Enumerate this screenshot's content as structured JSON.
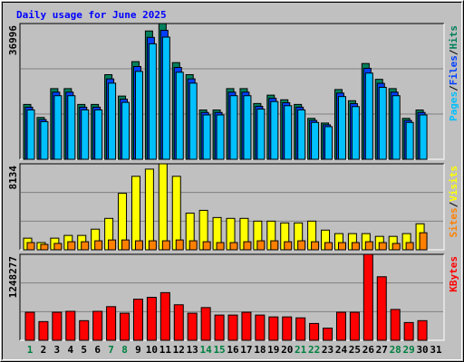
{
  "title": "Daily usage for June 2025",
  "legend_separator": "/",
  "chart_data": [
    {
      "type": "bar",
      "ylim": [
        0,
        36996
      ],
      "yticks": [
        36996
      ],
      "grid_divisions": 3,
      "series": [
        {
          "name": "Hits",
          "color": "#00805c",
          "values": [
            14950,
            11400,
            19260,
            19260,
            14950,
            14950,
            23060,
            17230,
            26610,
            34970,
            36996,
            26350,
            23060,
            13430,
            13430,
            19260,
            19260,
            15200,
            17480,
            16220,
            14950,
            11150,
            9880,
            19000,
            15960,
            26100,
            21790,
            19260,
            11150,
            13430,
            null
          ]
        },
        {
          "name": "Files",
          "color": "#0040ff",
          "values": [
            14200,
            10830,
            18300,
            18300,
            14200,
            14200,
            21910,
            16370,
            25280,
            33220,
            35150,
            25030,
            21910,
            12760,
            12760,
            18300,
            18300,
            14440,
            16610,
            15410,
            14200,
            10590,
            9390,
            18050,
            15160,
            24800,
            20700,
            18300,
            10590,
            12760,
            null
          ]
        },
        {
          "name": "Pages",
          "color": "#00c0ff",
          "values": [
            13460,
            10260,
            17330,
            17330,
            13460,
            13460,
            20750,
            15510,
            23950,
            31470,
            33300,
            23720,
            20750,
            12090,
            12090,
            17330,
            17330,
            13680,
            15730,
            14600,
            13460,
            10040,
            8890,
            17100,
            14360,
            23490,
            19610,
            17330,
            10040,
            12090,
            null
          ]
        }
      ]
    },
    {
      "type": "bar",
      "ylim": [
        0,
        8134
      ],
      "yticks": [
        8134
      ],
      "grid_divisions": 3,
      "series": [
        {
          "name": "Visits",
          "color": "#ffff00",
          "values": [
            1100,
            680,
            1100,
            1360,
            1360,
            1950,
            2970,
            5340,
            6950,
            7630,
            8134,
            6950,
            3470,
            3730,
            3050,
            2970,
            2970,
            2710,
            2710,
            2540,
            2540,
            2710,
            1860,
            1530,
            1530,
            1530,
            1270,
            1270,
            1530,
            2460,
            null
          ]
        },
        {
          "name": "Sites",
          "color": "#ff8000",
          "values": [
            680,
            510,
            600,
            760,
            760,
            850,
            930,
            930,
            850,
            850,
            850,
            930,
            850,
            760,
            680,
            680,
            760,
            850,
            850,
            760,
            850,
            760,
            680,
            680,
            680,
            760,
            680,
            600,
            680,
            1610,
            null
          ]
        }
      ]
    },
    {
      "type": "bar",
      "ylim": [
        0,
        1248277
      ],
      "yticks": [
        1248277
      ],
      "grid_divisions": 3,
      "categories": [
        "1",
        "2",
        "3",
        "4",
        "5",
        "6",
        "7",
        "8",
        "9",
        "10",
        "11",
        "12",
        "13",
        "14",
        "15",
        "16",
        "17",
        "18",
        "19",
        "20",
        "21",
        "22",
        "23",
        "24",
        "25",
        "26",
        "27",
        "28",
        "29",
        "30",
        "31"
      ],
      "category_colors": [
        "#008040",
        "#000000",
        "#000000",
        "#000000",
        "#000000",
        "#000000",
        "#008040",
        "#008040",
        "#000000",
        "#000000",
        "#000000",
        "#000000",
        "#000000",
        "#008040",
        "#008040",
        "#000000",
        "#000000",
        "#000000",
        "#000000",
        "#000000",
        "#008040",
        "#008040",
        "#000000",
        "#000000",
        "#000000",
        "#000000",
        "#000000",
        "#008040",
        "#008040",
        "#000000",
        "#000000"
      ],
      "series": [
        {
          "name": "KBytes",
          "color": "#ff0000",
          "values": [
            407000,
            271400,
            407000,
            420600,
            284900,
            420600,
            488400,
            393500,
            597000,
            624100,
            692000,
            515600,
            393500,
            474900,
            366300,
            366300,
            407000,
            366300,
            339200,
            339200,
            325600,
            244200,
            176400,
            407000,
            407000,
            1248277,
            922600,
            447700,
            257800,
            284900,
            null
          ]
        }
      ]
    }
  ]
}
